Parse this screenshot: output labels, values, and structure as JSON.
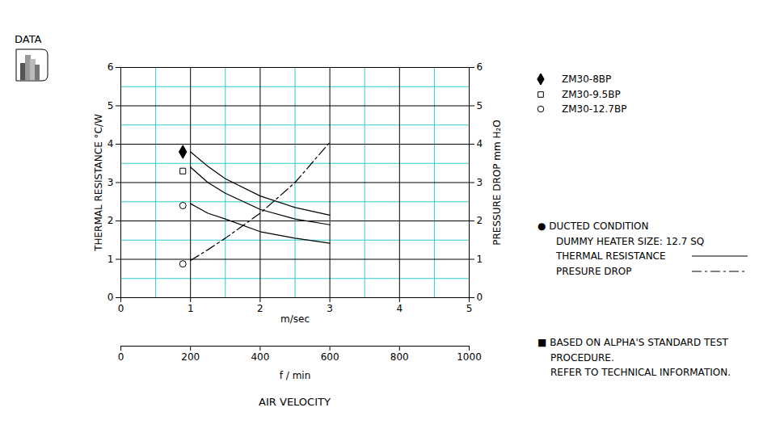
{
  "badge": "DATA",
  "chart_data": {
    "type": "line",
    "xlabel": "m/sec",
    "ylabel": "THERMAL RESISTANCE °C/W",
    "y2label": "PRESSURE DROP mm H₂O",
    "x2label": "f / min",
    "x_title": "AIR VELOCITY",
    "xlim": [
      0,
      5
    ],
    "xticks": [
      0,
      1,
      2,
      3,
      4,
      5
    ],
    "ylim": [
      0,
      6
    ],
    "yticks": [
      0,
      1,
      2,
      3,
      4,
      5,
      6
    ],
    "y2lim": [
      0,
      6
    ],
    "y2ticks": [
      0,
      1,
      2,
      3,
      4,
      5,
      6
    ],
    "x2lim": [
      0,
      1000
    ],
    "x2ticks": [
      0,
      200,
      400,
      600,
      800,
      1000
    ],
    "grid": true,
    "legend": "right",
    "x": [
      1,
      1.25,
      1.5,
      2,
      2.5,
      3
    ],
    "series": [
      {
        "name": "ZM30-8BP",
        "color": "#000000",
        "line_style": "solid",
        "marker": "diamond_filled",
        "marker_x": 0.89,
        "marker_y": 3.8,
        "values": [
          3.8,
          3.42,
          3.1,
          2.65,
          2.35,
          2.15
        ]
      },
      {
        "name": "ZM30-9.5BP",
        "color": "#000000",
        "line_style": "solid",
        "marker": "square_open",
        "marker_x": 0.89,
        "marker_y": 3.3,
        "values": [
          3.4,
          3.0,
          2.72,
          2.3,
          2.05,
          1.9
        ]
      },
      {
        "name": "ZM30-12.7BP",
        "color": "#000000",
        "line_style": "solid",
        "marker": "circle_open",
        "marker_x": 0.89,
        "marker_y": 2.4,
        "values": [
          2.45,
          2.2,
          2.05,
          1.72,
          1.55,
          1.42
        ]
      },
      {
        "name": "PRESURE DROP",
        "color": "#000000",
        "axis": "y2",
        "line_style": "dashdot",
        "marker": "circle_open",
        "marker_x": 0.89,
        "marker_y": 0.88,
        "values": [
          0.97,
          1.25,
          1.55,
          2.2,
          3.0,
          4.05
        ]
      }
    ],
    "line_legend": [
      {
        "label": "THERMAL RESISTANCE",
        "line_style": "solid"
      }
    ],
    "notes": [
      [
        "● DUCTED CONDITION",
        "DUMMY HEATER SIZE: 12.7 SQ"
      ],
      [
        "■ BASED ON ALPHA'S STANDARD TEST",
        "PROCEDURE.",
        "REFER TO TECHNICAL INFORMATION."
      ]
    ]
  }
}
